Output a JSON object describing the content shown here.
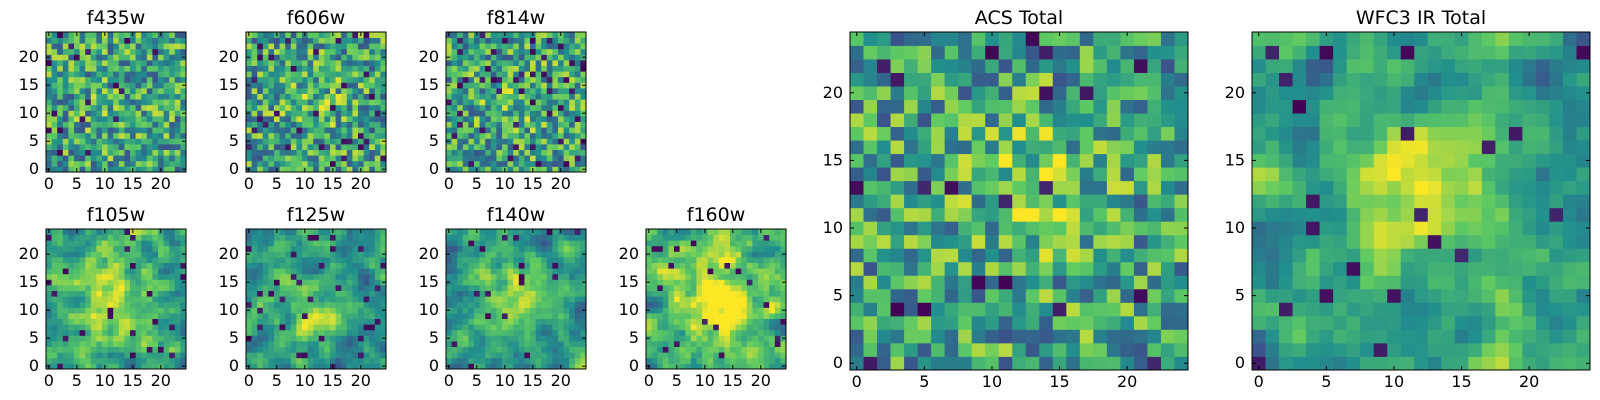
{
  "figure": {
    "colormap": "viridis",
    "cmap_colors": [
      "#440154",
      "#3b528b",
      "#21908d",
      "#5dc963",
      "#fde725"
    ]
  },
  "chart_data": [
    {
      "type": "heatmap",
      "title": "f435w",
      "size": 25,
      "xticks": [
        0,
        5,
        10,
        15,
        20
      ],
      "yticks": [
        0,
        5,
        10,
        15,
        20
      ],
      "seed": 11,
      "smooth": 0,
      "center": [
        12,
        12
      ],
      "amp": 0.05,
      "sigma": 5,
      "dark_frac": 0.04
    },
    {
      "type": "heatmap",
      "title": "f606w",
      "size": 25,
      "xticks": [
        0,
        5,
        10,
        15,
        20
      ],
      "yticks": [
        0,
        5,
        10,
        15,
        20
      ],
      "seed": 22,
      "smooth": 0,
      "center": [
        12,
        12
      ],
      "amp": 0.1,
      "sigma": 5,
      "dark_frac": 0.05
    },
    {
      "type": "heatmap",
      "title": "f814w",
      "size": 25,
      "xticks": [
        0,
        5,
        10,
        15,
        20
      ],
      "yticks": [
        0,
        5,
        10,
        15,
        20
      ],
      "seed": 33,
      "smooth": 0,
      "center": [
        12,
        12
      ],
      "amp": 0.1,
      "sigma": 5,
      "dark_frac": 0.06
    },
    {
      "type": "heatmap",
      "title": "f105w",
      "size": 25,
      "xticks": [
        0,
        5,
        10,
        15,
        20
      ],
      "yticks": [
        0,
        5,
        10,
        15,
        20
      ],
      "seed": 44,
      "smooth": 1,
      "center": [
        11,
        12
      ],
      "amp": 0.25,
      "sigma": 5,
      "dark_frac": 0.05
    },
    {
      "type": "heatmap",
      "title": "f125w",
      "size": 25,
      "xticks": [
        0,
        5,
        10,
        15,
        20
      ],
      "yticks": [
        0,
        5,
        10,
        15,
        20
      ],
      "seed": 55,
      "smooth": 1,
      "center": [
        12,
        12
      ],
      "amp": 0.2,
      "sigma": 5,
      "dark_frac": 0.06
    },
    {
      "type": "heatmap",
      "title": "f140w",
      "size": 25,
      "xticks": [
        0,
        5,
        10,
        15,
        20
      ],
      "yticks": [
        0,
        5,
        10,
        15,
        20
      ],
      "seed": 66,
      "smooth": 1,
      "center": [
        12,
        12
      ],
      "amp": 0.3,
      "sigma": 5,
      "dark_frac": 0.04
    },
    {
      "type": "heatmap",
      "title": "f160w",
      "size": 25,
      "xticks": [
        0,
        5,
        10,
        15,
        20
      ],
      "yticks": [
        0,
        5,
        10,
        15,
        20
      ],
      "seed": 77,
      "smooth": 1,
      "center": [
        13,
        12
      ],
      "amp": 0.4,
      "sigma": 6,
      "dark_frac": 0.03
    },
    {
      "type": "heatmap",
      "title": "ACS Total",
      "size": 25,
      "xticks": [
        0,
        5,
        10,
        15,
        20
      ],
      "yticks": [
        0,
        5,
        10,
        15,
        20
      ],
      "seed": 88,
      "smooth": 0,
      "center": [
        13,
        13
      ],
      "amp": 0.25,
      "sigma": 3,
      "dark_frac": 0.04
    },
    {
      "type": "heatmap",
      "title": "WFC3 IR Total",
      "size": 25,
      "xticks": [
        0,
        5,
        10,
        15,
        20
      ],
      "yticks": [
        0,
        5,
        10,
        15,
        20
      ],
      "seed": 99,
      "smooth": 1,
      "center": [
        12,
        12
      ],
      "amp": 0.45,
      "sigma": 4,
      "dark_frac": 0.03
    }
  ]
}
